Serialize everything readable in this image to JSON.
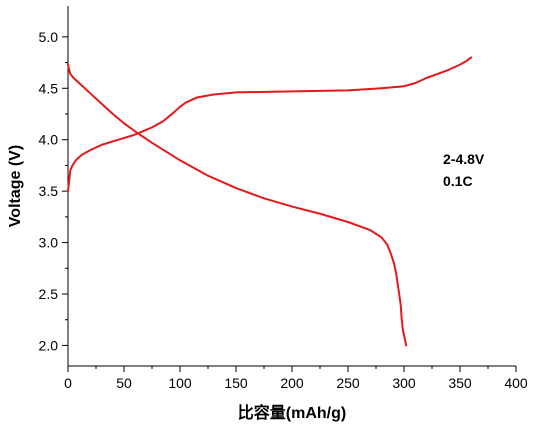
{
  "chart_data": {
    "type": "line",
    "title": "",
    "xlabel": "比容量(mAh/g)",
    "ylabel": "Voltage (V)",
    "xlim": [
      0,
      400
    ],
    "ylim": [
      2.0,
      5.0
    ],
    "xticks": [
      "0",
      "50",
      "100",
      "150",
      "200",
      "250",
      "300",
      "350",
      "400"
    ],
    "yticks": [
      "2.0",
      "2.5",
      "3.0",
      "3.5",
      "4.0",
      "4.5",
      "5.0"
    ],
    "grid": false,
    "annotations": [
      "2-4.8V",
      "0.1C"
    ],
    "series_color": "#e31a1c",
    "series": [
      {
        "x": [
          0,
          1,
          2,
          4,
          7,
          12,
          20,
          30,
          45,
          60,
          75,
          85,
          95,
          100,
          105,
          115,
          130,
          150,
          200,
          250,
          280,
          300,
          310,
          320,
          330,
          340,
          350,
          355,
          360
        ],
        "y": [
          3.5,
          3.6,
          3.7,
          3.75,
          3.8,
          3.85,
          3.9,
          3.95,
          4.0,
          4.05,
          4.12,
          4.18,
          4.27,
          4.32,
          4.36,
          4.41,
          4.44,
          4.46,
          4.47,
          4.48,
          4.5,
          4.52,
          4.55,
          4.6,
          4.64,
          4.68,
          4.73,
          4.76,
          4.8
        ]
      },
      {
        "x": [
          0,
          1,
          2,
          5,
          10,
          20,
          30,
          40,
          50,
          60,
          75,
          100,
          125,
          150,
          175,
          200,
          225,
          250,
          270,
          280,
          285,
          288,
          291,
          293,
          295,
          297,
          298,
          299,
          300,
          301,
          302
        ],
        "y": [
          4.73,
          4.68,
          4.64,
          4.6,
          4.55,
          4.45,
          4.35,
          4.25,
          4.16,
          4.08,
          3.97,
          3.8,
          3.65,
          3.53,
          3.43,
          3.35,
          3.28,
          3.2,
          3.12,
          3.05,
          2.98,
          2.9,
          2.8,
          2.7,
          2.55,
          2.4,
          2.25,
          2.15,
          2.1,
          2.05,
          2.0
        ]
      }
    ]
  }
}
